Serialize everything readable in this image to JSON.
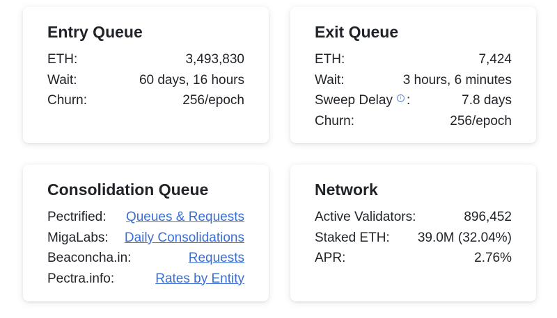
{
  "entry_queue": {
    "title": "Entry Queue",
    "rows": [
      {
        "label": "ETH:",
        "value": "3,493,830"
      },
      {
        "label": "Wait:",
        "value": "60 days, 16 hours"
      },
      {
        "label": "Churn:",
        "value": "256/epoch"
      }
    ]
  },
  "exit_queue": {
    "title": "Exit Queue",
    "rows": [
      {
        "label": "ETH:",
        "value": "7,424"
      },
      {
        "label": "Wait:",
        "value": "3 hours, 6 minutes"
      },
      {
        "label": "Sweep Delay",
        "label_suffix": ":",
        "value": "7.8 days"
      },
      {
        "label": "Churn:",
        "value": "256/epoch"
      }
    ],
    "info_icon": "info-icon"
  },
  "consolidation_queue": {
    "title": "Consolidation Queue",
    "rows": [
      {
        "label": "Pectrified:",
        "link": "Queues & Requests"
      },
      {
        "label": "MigaLabs:",
        "link": "Daily Consolidations"
      },
      {
        "label": "Beaconcha.in:",
        "link": "Requests"
      },
      {
        "label": "Pectra.info:",
        "link": "Rates by Entity"
      }
    ]
  },
  "network": {
    "title": "Network",
    "rows": [
      {
        "label": "Active Validators:",
        "value": "896,452"
      },
      {
        "label": "Staked ETH:",
        "value": "39.0M (32.04%)"
      },
      {
        "label": "APR:",
        "value": "2.76%"
      }
    ]
  },
  "colors": {
    "link": "#3b6fd4",
    "text": "#1f2328"
  }
}
